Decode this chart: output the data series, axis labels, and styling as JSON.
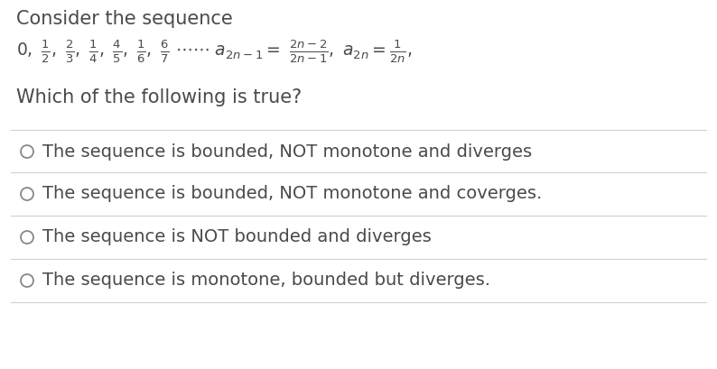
{
  "background_color": "#ffffff",
  "title_text": "Consider the sequence",
  "question_text": "Which of the following is true?",
  "options": [
    "The sequence is bounded, NOT monotone and diverges",
    "The sequence is bounded, NOT monotone and coverges.",
    "The sequence is NOT bounded and diverges",
    "The sequence is monotone, bounded but diverges."
  ],
  "text_color": "#4a4a4a",
  "line_color": "#d0d0d0",
  "circle_color": "#888888",
  "font_size_title": 15,
  "font_size_sequence": 13.5,
  "font_size_question": 15,
  "font_size_options": 14
}
